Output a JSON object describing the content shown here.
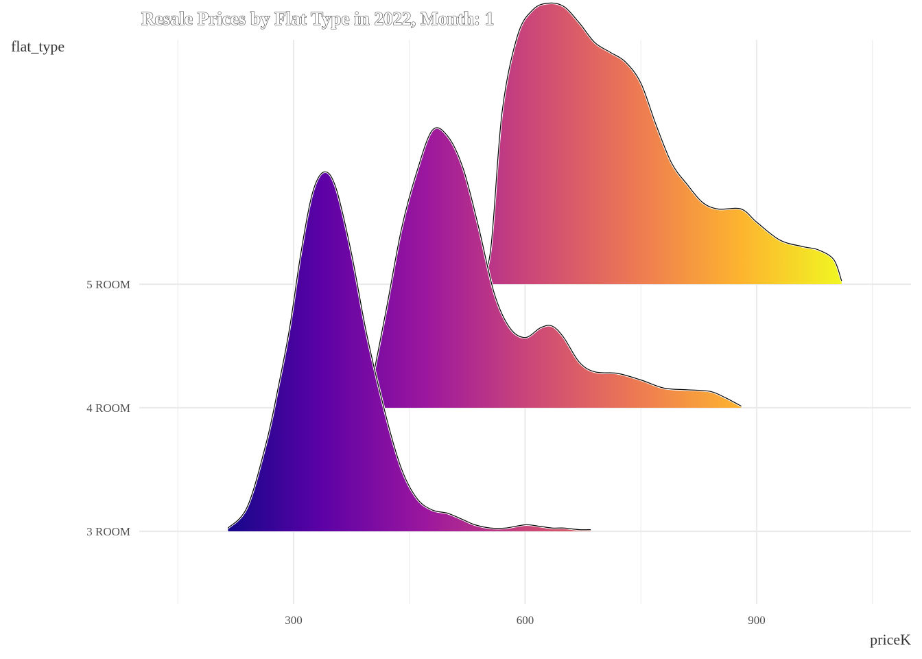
{
  "chart_data": {
    "type": "ridgeline",
    "title": "Resale Prices by Flat Type in 2022, Month: 1",
    "xlabel": "priceK",
    "ylabel": "flat_type",
    "xlim": [
      100,
      1100
    ],
    "x_ticks": [
      300,
      600,
      900
    ],
    "x_minor_grid": [
      150,
      450,
      750,
      1050
    ],
    "categories": [
      "3 ROOM",
      "4 ROOM",
      "5 ROOM"
    ],
    "grid": true,
    "fill_scale": "plasma gradient along priceK",
    "colors": {
      "gradient": [
        "#0d0887",
        "#5c01a6",
        "#9c179e",
        "#cc4778",
        "#ed7953",
        "#fdb42f",
        "#f0f921"
      ],
      "outline": "#000000",
      "halo": "#ffffff",
      "grid": "#ebebeb"
    },
    "series": [
      {
        "name": "3 ROOM",
        "x": [
          215,
          240,
          265,
          280,
          295,
          310,
          325,
          340,
          355,
          375,
          395,
          420,
          440,
          460,
          480,
          500,
          520,
          535,
          555,
          575,
          600,
          620,
          635,
          650,
          670,
          685
        ],
        "density": [
          0.02,
          0.15,
          0.55,
          0.88,
          1.25,
          1.72,
          2.08,
          2.2,
          2.1,
          1.7,
          1.2,
          0.7,
          0.38,
          0.2,
          0.13,
          0.11,
          0.07,
          0.04,
          0.02,
          0.02,
          0.04,
          0.03,
          0.02,
          0.02,
          0.01,
          0.01
        ]
      },
      {
        "name": "4 ROOM",
        "x": [
          395,
          420,
          440,
          460,
          480,
          500,
          520,
          540,
          560,
          580,
          600,
          620,
          635,
          650,
          670,
          690,
          720,
          750,
          780,
          810,
          840,
          860,
          880
        ],
        "density": [
          0.0,
          0.6,
          1.1,
          1.45,
          1.7,
          1.66,
          1.46,
          1.1,
          0.7,
          0.49,
          0.43,
          0.49,
          0.5,
          0.43,
          0.28,
          0.22,
          0.21,
          0.17,
          0.12,
          0.11,
          0.1,
          0.06,
          0.01
        ]
      },
      {
        "name": "5 ROOM",
        "x": [
          540,
          555,
          570,
          590,
          610,
          630,
          650,
          670,
          690,
          710,
          730,
          750,
          770,
          790,
          810,
          830,
          850,
          880,
          900,
          930,
          960,
          980,
          1000,
          1010
        ],
        "density": [
          0.0,
          0.2,
          1.05,
          1.52,
          1.68,
          1.72,
          1.7,
          1.6,
          1.48,
          1.42,
          1.36,
          1.23,
          0.97,
          0.74,
          0.61,
          0.5,
          0.46,
          0.46,
          0.38,
          0.27,
          0.23,
          0.21,
          0.15,
          0.02
        ]
      }
    ]
  }
}
